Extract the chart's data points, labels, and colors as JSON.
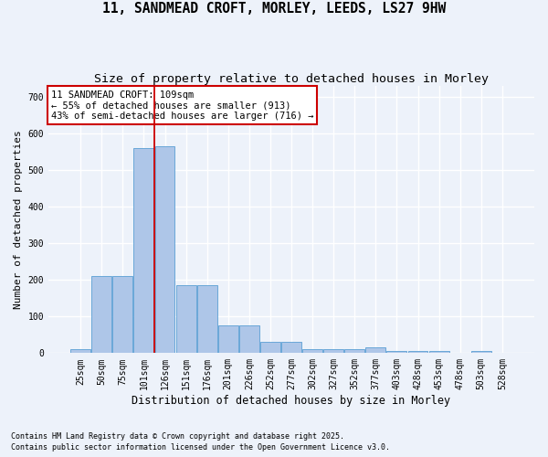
{
  "title_line1": "11, SANDMEAD CROFT, MORLEY, LEEDS, LS27 9HW",
  "title_line2": "Size of property relative to detached houses in Morley",
  "xlabel": "Distribution of detached houses by size in Morley",
  "ylabel": "Number of detached properties",
  "categories": [
    "25sqm",
    "50sqm",
    "75sqm",
    "101sqm",
    "126sqm",
    "151sqm",
    "176sqm",
    "201sqm",
    "226sqm",
    "252sqm",
    "277sqm",
    "302sqm",
    "327sqm",
    "352sqm",
    "377sqm",
    "403sqm",
    "428sqm",
    "453sqm",
    "478sqm",
    "503sqm",
    "528sqm"
  ],
  "values": [
    10,
    210,
    210,
    560,
    565,
    185,
    185,
    75,
    75,
    30,
    30,
    10,
    10,
    10,
    15,
    5,
    5,
    5,
    1,
    5,
    0
  ],
  "bar_color": "#aec6e8",
  "bar_edge_color": "#5a9fd4",
  "vline_x": 3.5,
  "vline_color": "#cc0000",
  "annotation_title": "11 SANDMEAD CROFT: 109sqm",
  "annotation_line1": "← 55% of detached houses are smaller (913)",
  "annotation_line2": "43% of semi-detached houses are larger (716) →",
  "annotation_box_color": "#ffffff",
  "annotation_box_edge": "#cc0000",
  "footnote1": "Contains HM Land Registry data © Crown copyright and database right 2025.",
  "footnote2": "Contains public sector information licensed under the Open Government Licence v3.0.",
  "bg_color": "#edf2fa",
  "plot_bg_color": "#edf2fa",
  "ylim": [
    0,
    730
  ],
  "yticks": [
    0,
    100,
    200,
    300,
    400,
    500,
    600,
    700
  ],
  "grid_color": "#ffffff",
  "title_fontsize": 10.5,
  "subtitle_fontsize": 9.5,
  "tick_fontsize": 7,
  "ylabel_fontsize": 8,
  "xlabel_fontsize": 8.5,
  "annot_fontsize": 7.5,
  "footnote_fontsize": 6
}
